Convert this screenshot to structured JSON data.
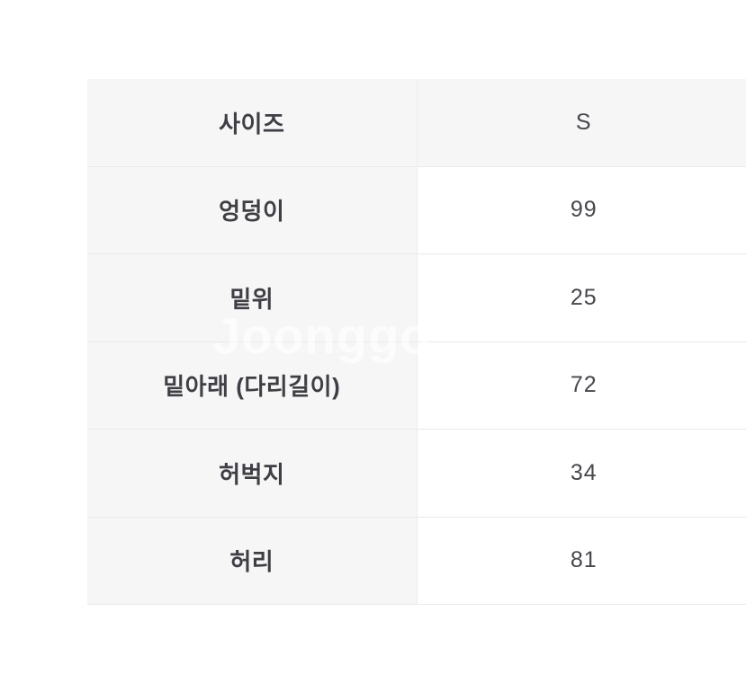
{
  "page": {
    "background": "#ffffff"
  },
  "watermark": {
    "text": "Joonggo",
    "color": "rgba(255,255,255,0.62)"
  },
  "size_table": {
    "header": {
      "label": "사이즈",
      "value": "S"
    },
    "rows": [
      {
        "label": "엉덩이",
        "value": "99"
      },
      {
        "label": "밑위",
        "value": "25"
      },
      {
        "label": "밑아래 (다리길이)",
        "value": "72"
      },
      {
        "label": "허벅지",
        "value": "34"
      },
      {
        "label": "허리",
        "value": "81"
      }
    ],
    "colors": {
      "header_bg": "#f6f6f7",
      "cell_bg": "#ffffff",
      "border": "#e9e9eb",
      "label_text": "#3e3e44",
      "value_text": "#47474d"
    }
  }
}
